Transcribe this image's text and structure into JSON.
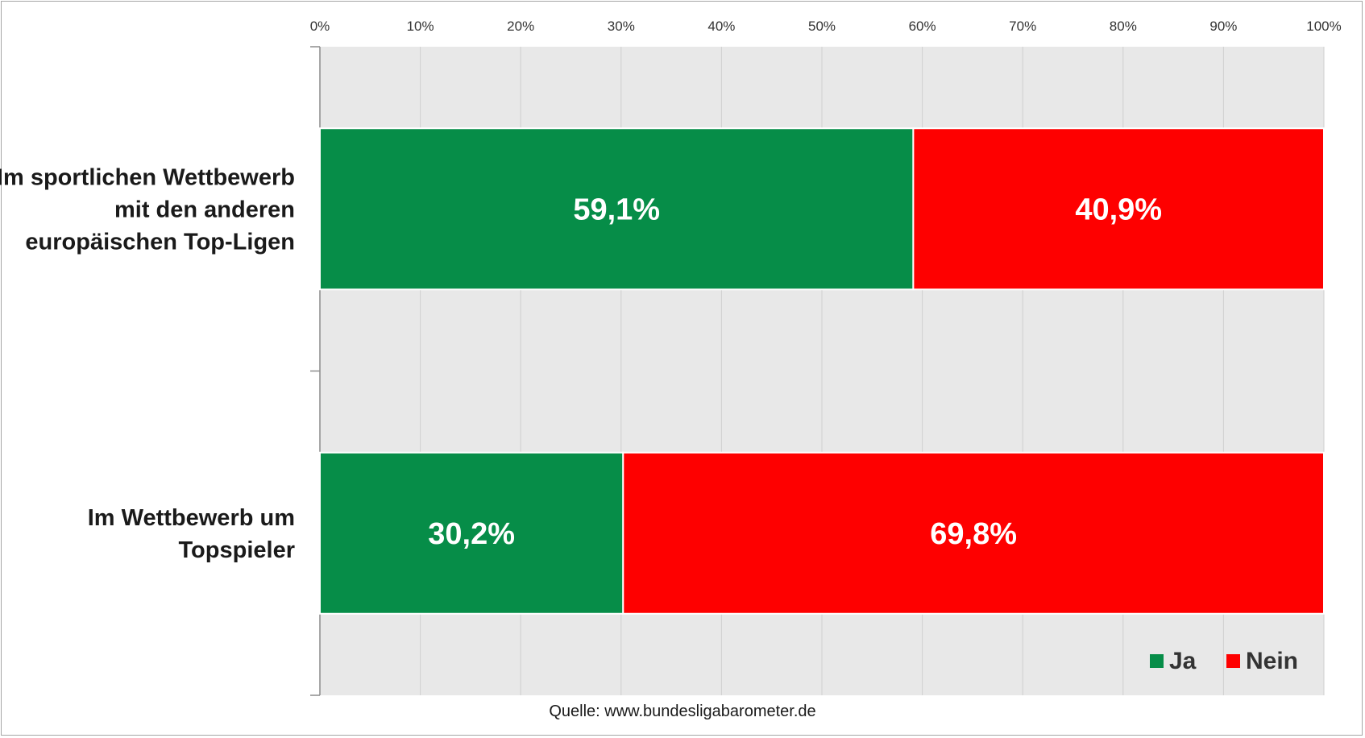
{
  "chart_data": {
    "type": "bar",
    "orientation": "horizontal",
    "stacked": true,
    "categories": [
      "Im sportlichen Wettbewerb mit den anderen europäischen Top-Ligen",
      "Im Wettbewerb um Topspieler"
    ],
    "category_lines": [
      [
        "Im sportlichen Wettbewerb",
        "mit den anderen",
        "europäischen Top-Ligen"
      ],
      [
        "Im Wettbewerb um",
        "Topspieler"
      ]
    ],
    "series": [
      {
        "name": "Ja",
        "color": "#068d48",
        "values": [
          59.1,
          30.2
        ],
        "labels": [
          "59,1%",
          "30,2%"
        ]
      },
      {
        "name": "Nein",
        "color": "#fe0000",
        "values": [
          40.9,
          69.8
        ],
        "labels": [
          "40,9%",
          "69,8%"
        ]
      }
    ],
    "xlim": [
      0,
      100
    ],
    "x_ticks": [
      "0%",
      "10%",
      "20%",
      "30%",
      "40%",
      "50%",
      "60%",
      "70%",
      "80%",
      "90%",
      "100%"
    ],
    "x_axis_position": "top",
    "grid": true,
    "plot_background": "#e8e8e8",
    "grid_color": "#cfcfcf",
    "legend_position": "bottom-right",
    "title": "",
    "xlabel": "",
    "ylabel": ""
  },
  "source": "Quelle: www.bundesligabarometer.de"
}
